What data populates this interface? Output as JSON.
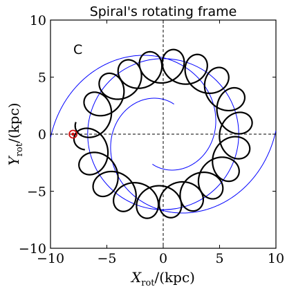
{
  "chart_data": {
    "type": "line",
    "title": "Spiral's rotating frame",
    "panel_label": "C",
    "xlabel": {
      "main": "X",
      "sub": "rot",
      "unit": "/(kpc)"
    },
    "ylabel": {
      "main": "Y",
      "sub": "rot",
      "unit": "/(kpc)"
    },
    "xlim": [
      -10,
      10
    ],
    "ylim": [
      -10,
      10
    ],
    "xticks": [
      -10,
      -5,
      0,
      5,
      10
    ],
    "yticks": [
      -10,
      -5,
      0,
      5,
      10
    ],
    "grid": false,
    "reference_lines": {
      "x": 0,
      "y": 0,
      "style": "dashed"
    },
    "colors": {
      "orbit": "#000000",
      "arms": "#0000ff",
      "marker": "#d01010",
      "axes": "#000000"
    },
    "circle": {
      "center": [
        0,
        0
      ],
      "radius": 6.7
    },
    "spiral_arms": [
      {
        "type": "log_spiral",
        "k": 0.25,
        "r0": 6.7,
        "theta_start_deg": -110,
        "theta_end_deg": 195
      },
      {
        "type": "log_spiral",
        "k": 0.25,
        "r0": 6.7,
        "theta_start_deg": 70,
        "theta_end_deg": 375
      }
    ],
    "orbit": {
      "guiding_radius": 6.2,
      "amplitude": 1.45,
      "loops": 18,
      "start_phase_deg": 160,
      "path_lon_start_deg": 175,
      "path_lon_end_deg": -180,
      "loop_end_phase_deg": 6730,
      "turns": 1
    },
    "marker": {
      "x": -8.0,
      "y": 0.0
    }
  }
}
